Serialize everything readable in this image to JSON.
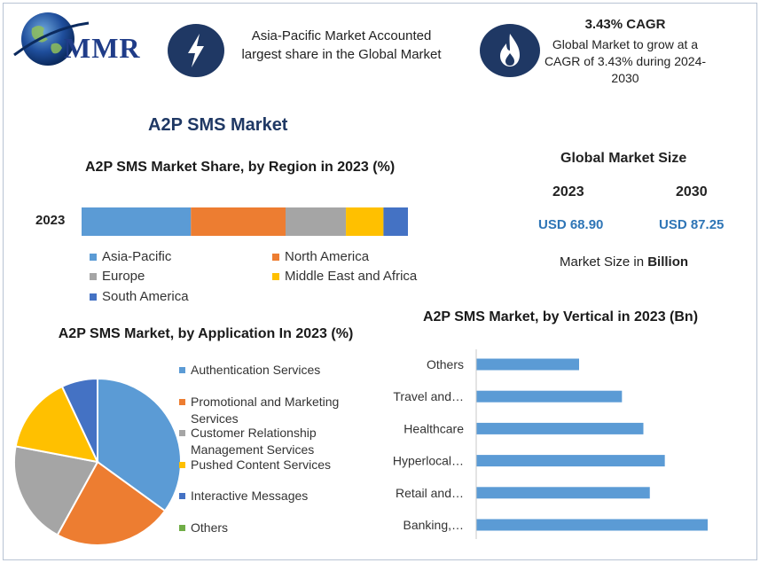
{
  "header": {
    "logo_text": "MMR",
    "callout_region": "Asia-Pacific Market Accounted largest share in the Global Market",
    "callout_cagr_title": "3.43% CAGR",
    "callout_cagr_body": "Global Market to grow at a CAGR of 3.43% during 2024-2030",
    "icons": [
      "lightning-icon",
      "flame-icon"
    ]
  },
  "page_title": "A2P SMS Market",
  "market_size": {
    "title": "Global Market Size",
    "year_a": "2023",
    "year_b": "2030",
    "value_a": "USD 68.90",
    "value_b": "USD 87.25",
    "note_prefix": "Market Size in ",
    "note_unit": "Billion"
  },
  "colors": {
    "blue": "#5b9bd5",
    "orange": "#ed7d31",
    "gray": "#a5a5a5",
    "yellow": "#ffc000",
    "dark_blue": "#4472c4",
    "green": "#70ad47",
    "title_blue": "#1f3864",
    "value_blue": "#2e75b6"
  },
  "chart_data": [
    {
      "type": "bar",
      "orientation": "horizontal-stacked",
      "title": "A2P SMS Market Share, by Region in 2023 (%)",
      "categories": [
        "2023"
      ],
      "series": [
        {
          "name": "Asia-Pacific",
          "values": [
            33.5
          ]
        },
        {
          "name": "North America",
          "values": [
            29
          ]
        },
        {
          "name": "Europe",
          "values": [
            18.5
          ]
        },
        {
          "name": "Middle East and Africa",
          "values": [
            11.5
          ]
        },
        {
          "name": "South America",
          "values": [
            7.5
          ]
        }
      ],
      "legend_position": "bottom"
    },
    {
      "type": "pie",
      "title": "A2P SMS Market, by Application In 2023 (%)",
      "labels": [
        "Authentication Services",
        "Promotional and Marketing Services",
        "Customer Relationship Management Services",
        "Pushed Content Services",
        "Interactive Messages",
        "Others"
      ],
      "values": [
        35,
        23,
        20,
        15,
        7,
        0
      ],
      "legend_position": "right"
    },
    {
      "type": "bar",
      "orientation": "horizontal",
      "title": "A2P SMS Market, by Vertical in 2023 (Bn)",
      "categories": [
        "Others",
        "Travel and…",
        "Healthcare",
        "Hyperlocal…",
        "Retail and…",
        "Banking,…"
      ],
      "values": [
        4.8,
        6.8,
        7.8,
        8.8,
        8.1,
        10.8
      ],
      "xlim": [
        0,
        12
      ],
      "grid": false
    }
  ]
}
